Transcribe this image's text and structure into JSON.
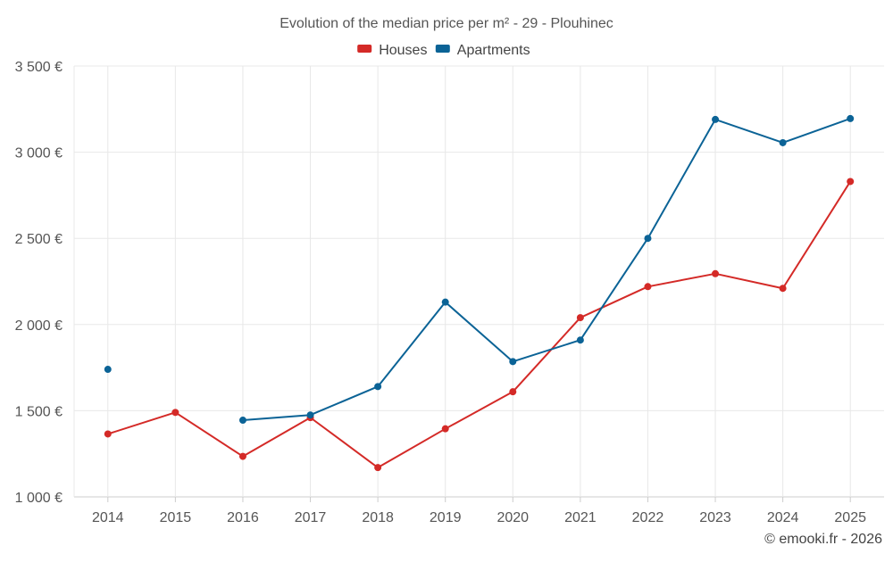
{
  "chart_data": {
    "type": "line",
    "title": "Evolution of the median price per m² - 29 - Plouhinec",
    "categories": [
      "2014",
      "2015",
      "2016",
      "2017",
      "2018",
      "2019",
      "2020",
      "2021",
      "2022",
      "2023",
      "2024",
      "2025"
    ],
    "ylim": [
      1000,
      3500
    ],
    "yticks": [
      1000,
      1500,
      2000,
      2500,
      3000,
      3500
    ],
    "ytick_labels": [
      "1 000 €",
      "1 500 €",
      "2 000 €",
      "2 500 €",
      "3 000 €",
      "3 500 €"
    ],
    "xlabel": "",
    "ylabel": "",
    "legend_position": "top-center",
    "grid": true,
    "series": [
      {
        "name": "Houses",
        "color": "#d42a27",
        "values": [
          1365,
          1490,
          1235,
          1460,
          1170,
          1395,
          1610,
          2040,
          2220,
          2295,
          2210,
          2830
        ]
      },
      {
        "name": "Apartments",
        "color": "#0b6396",
        "values": [
          1740,
          null,
          1445,
          1475,
          1640,
          2130,
          1785,
          1910,
          2500,
          3190,
          3055,
          3195
        ]
      }
    ]
  },
  "credit": "© emooki.fr - 2026"
}
